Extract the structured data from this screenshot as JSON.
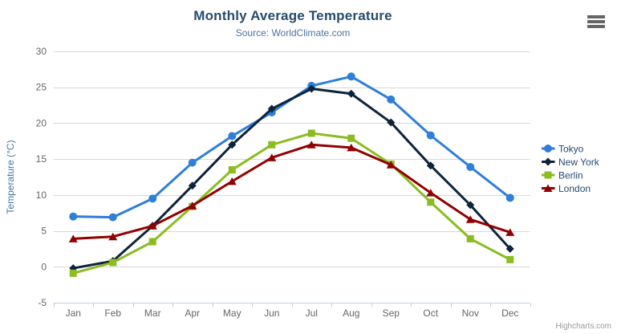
{
  "credit": {
    "label": "Highcharts.com"
  },
  "export_menu": {
    "icon": "hamburger-icon"
  },
  "colors": {
    "title": "#274b6d",
    "subtitle": "#4d759e",
    "axis_labels": "#666666",
    "axis_title": "#4d759e",
    "grid_line": "#d8d8d8",
    "axis_line": "#c0d0e0",
    "legend_text": "#274b6d",
    "credit_text": "#999999",
    "menu_icon": "#666666"
  },
  "chart_data": {
    "type": "line",
    "title": "Monthly Average Temperature",
    "subtitle": "Source: WorldClimate.com",
    "categories": [
      "Jan",
      "Feb",
      "Mar",
      "Apr",
      "May",
      "Jun",
      "Jul",
      "Aug",
      "Sep",
      "Oct",
      "Nov",
      "Dec"
    ],
    "series": [
      {
        "name": "Tokyo",
        "color": "#2f7ed8",
        "marker": "circle",
        "values": [
          7.0,
          6.9,
          9.5,
          14.5,
          18.2,
          21.5,
          25.2,
          26.5,
          23.3,
          18.3,
          13.9,
          9.6
        ]
      },
      {
        "name": "New York",
        "color": "#0d233a",
        "marker": "diamond",
        "values": [
          -0.2,
          0.8,
          5.7,
          11.3,
          17.0,
          22.0,
          24.8,
          24.1,
          20.1,
          14.1,
          8.6,
          2.5
        ]
      },
      {
        "name": "Berlin",
        "color": "#8bbc21",
        "marker": "square",
        "values": [
          -0.9,
          0.6,
          3.5,
          8.4,
          13.5,
          17.0,
          18.6,
          17.9,
          14.3,
          9.0,
          3.9,
          1.0
        ]
      },
      {
        "name": "London",
        "color": "#910000",
        "marker": "triangle",
        "values": [
          3.9,
          4.2,
          5.7,
          8.5,
          11.9,
          15.2,
          17.0,
          16.6,
          14.2,
          10.3,
          6.6,
          4.8
        ]
      }
    ],
    "xlabel": "",
    "ylabel": "Temperature (°C)",
    "ylim": [
      -5,
      30
    ],
    "yticks": [
      -5,
      0,
      5,
      10,
      15,
      20,
      25,
      30
    ],
    "grid": true,
    "legend_position": "right"
  }
}
